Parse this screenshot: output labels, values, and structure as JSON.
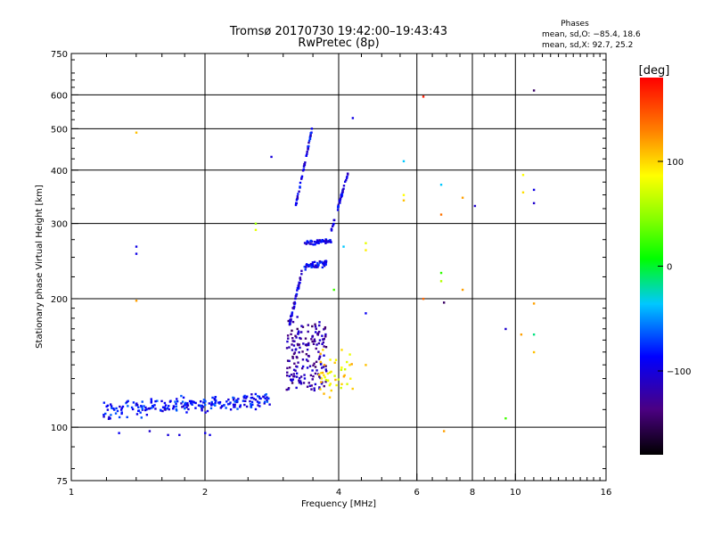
{
  "chart_data": {
    "type": "scatter",
    "title": "Tromsø 20170730 19:42:00–19:43:43",
    "subtitle": "RwPretec (8p)",
    "xlabel": "Frequency [MHz]",
    "ylabel": "Stationary phase Virtual Height [km]",
    "xscale": "log2",
    "yscale": "log",
    "xlim": [
      1,
      16
    ],
    "ylim": [
      75,
      750
    ],
    "x_ticks": [
      1,
      2,
      4,
      6,
      8,
      10,
      16
    ],
    "x_tick_labels": [
      "1",
      "2",
      "4",
      "6",
      "8",
      "10",
      "16"
    ],
    "y_ticks": [
      75,
      100,
      200,
      300,
      400,
      500,
      600,
      750
    ],
    "y_tick_labels": [
      "75",
      "100",
      "200",
      "300",
      "400",
      "500",
      "600",
      "750"
    ],
    "grid": true,
    "info": {
      "heading": "Phases",
      "line1": "mean, sd,O: −85.4, 18.6",
      "line2": "mean, sd,X:  92.7, 25.2"
    },
    "colorbar": {
      "label": "[deg]",
      "range": [
        -180,
        180
      ],
      "ticks": [
        100,
        0,
        -100
      ],
      "tick_labels": [
        "100",
        "0",
        "−100"
      ]
    },
    "clusters": [
      {
        "name": "E-layer trace",
        "x_from": 1.18,
        "x_to": 2.8,
        "y_from": 106,
        "y_to": 120,
        "phase": -88,
        "count": 230,
        "spread_y": 0.045
      },
      {
        "name": "F1 cusp lower",
        "x_from": 3.05,
        "x_to": 3.75,
        "y_from": 125,
        "y_to": 175,
        "phase": -125,
        "count": 180,
        "spread_y": 0.08
      },
      {
        "name": "F1 vertical rise",
        "x_from": 3.1,
        "x_to": 3.3,
        "y_from": 175,
        "y_to": 230,
        "phase": -105,
        "count": 45,
        "spread_y": 0.03
      },
      {
        "name": "F2 O-trace band lower",
        "x_from": 3.35,
        "x_to": 3.75,
        "y_from": 235,
        "y_to": 245,
        "phase": -95,
        "count": 50,
        "spread_y": 0.02
      },
      {
        "name": "F2 O-trace band upper",
        "x_from": 3.35,
        "x_to": 3.85,
        "y_from": 268,
        "y_to": 275,
        "phase": -95,
        "count": 55,
        "spread_y": 0.015
      },
      {
        "name": "F2 cusp",
        "x_from": 3.2,
        "x_to": 3.48,
        "y_from": 330,
        "y_to": 500,
        "phase": -100,
        "count": 45,
        "spread_y": 0.02
      },
      {
        "name": "F2 X-trace",
        "x_from": 3.85,
        "x_to": 4.2,
        "y_from": 290,
        "y_to": 395,
        "phase": -100,
        "count": 40,
        "spread_y": 0.02
      },
      {
        "name": "F2 warm points",
        "x_from": 3.6,
        "x_to": 4.3,
        "y_from": 120,
        "y_to": 150,
        "phase": 95,
        "count": 45,
        "spread_y": 0.07
      }
    ],
    "points": [
      {
        "x": 1.4,
        "y": 490,
        "phase": 110
      },
      {
        "x": 1.4,
        "y": 265,
        "phase": -100
      },
      {
        "x": 1.4,
        "y": 255,
        "phase": -100
      },
      {
        "x": 1.4,
        "y": 198,
        "phase": 120
      },
      {
        "x": 1.28,
        "y": 97,
        "phase": -95
      },
      {
        "x": 1.5,
        "y": 98,
        "phase": -110
      },
      {
        "x": 1.65,
        "y": 96,
        "phase": -105
      },
      {
        "x": 1.75,
        "y": 96,
        "phase": -105
      },
      {
        "x": 2.0,
        "y": 97,
        "phase": -100
      },
      {
        "x": 2.05,
        "y": 96,
        "phase": -100
      },
      {
        "x": 2.82,
        "y": 430,
        "phase": -105
      },
      {
        "x": 4.3,
        "y": 530,
        "phase": -100
      },
      {
        "x": 5.6,
        "y": 420,
        "phase": -40
      },
      {
        "x": 6.2,
        "y": 595,
        "phase": 170
      },
      {
        "x": 6.8,
        "y": 370,
        "phase": -40
      },
      {
        "x": 6.8,
        "y": 315,
        "phase": 135
      },
      {
        "x": 7.6,
        "y": 345,
        "phase": 120
      },
      {
        "x": 8.1,
        "y": 330,
        "phase": -110
      },
      {
        "x": 5.6,
        "y": 350,
        "phase": 90
      },
      {
        "x": 5.6,
        "y": 340,
        "phase": 110
      },
      {
        "x": 4.6,
        "y": 270,
        "phase": 80
      },
      {
        "x": 4.6,
        "y": 260,
        "phase": 95
      },
      {
        "x": 6.8,
        "y": 230,
        "phase": 15
      },
      {
        "x": 6.8,
        "y": 220,
        "phase": 60
      },
      {
        "x": 7.6,
        "y": 210,
        "phase": 120
      },
      {
        "x": 6.2,
        "y": 200,
        "phase": 140
      },
      {
        "x": 6.9,
        "y": 196,
        "phase": -150
      },
      {
        "x": 4.6,
        "y": 185,
        "phase": -95
      },
      {
        "x": 4.1,
        "y": 265,
        "phase": -40
      },
      {
        "x": 3.9,
        "y": 210,
        "phase": 20
      },
      {
        "x": 4.6,
        "y": 140,
        "phase": 110
      },
      {
        "x": 9.5,
        "y": 170,
        "phase": -110
      },
      {
        "x": 10.3,
        "y": 165,
        "phase": 120
      },
      {
        "x": 11.0,
        "y": 165,
        "phase": -20
      },
      {
        "x": 11.0,
        "y": 150,
        "phase": 110
      },
      {
        "x": 11.0,
        "y": 195,
        "phase": 120
      },
      {
        "x": 11.0,
        "y": 335,
        "phase": -110
      },
      {
        "x": 11.0,
        "y": 360,
        "phase": -100
      },
      {
        "x": 10.4,
        "y": 355,
        "phase": 100
      },
      {
        "x": 10.4,
        "y": 390,
        "phase": 90
      },
      {
        "x": 11.0,
        "y": 615,
        "phase": -150
      },
      {
        "x": 9.5,
        "y": 105,
        "phase": 20
      },
      {
        "x": 6.9,
        "y": 98,
        "phase": 120
      },
      {
        "x": 2.6,
        "y": 300,
        "phase": 50
      },
      {
        "x": 2.6,
        "y": 290,
        "phase": 80
      }
    ]
  }
}
